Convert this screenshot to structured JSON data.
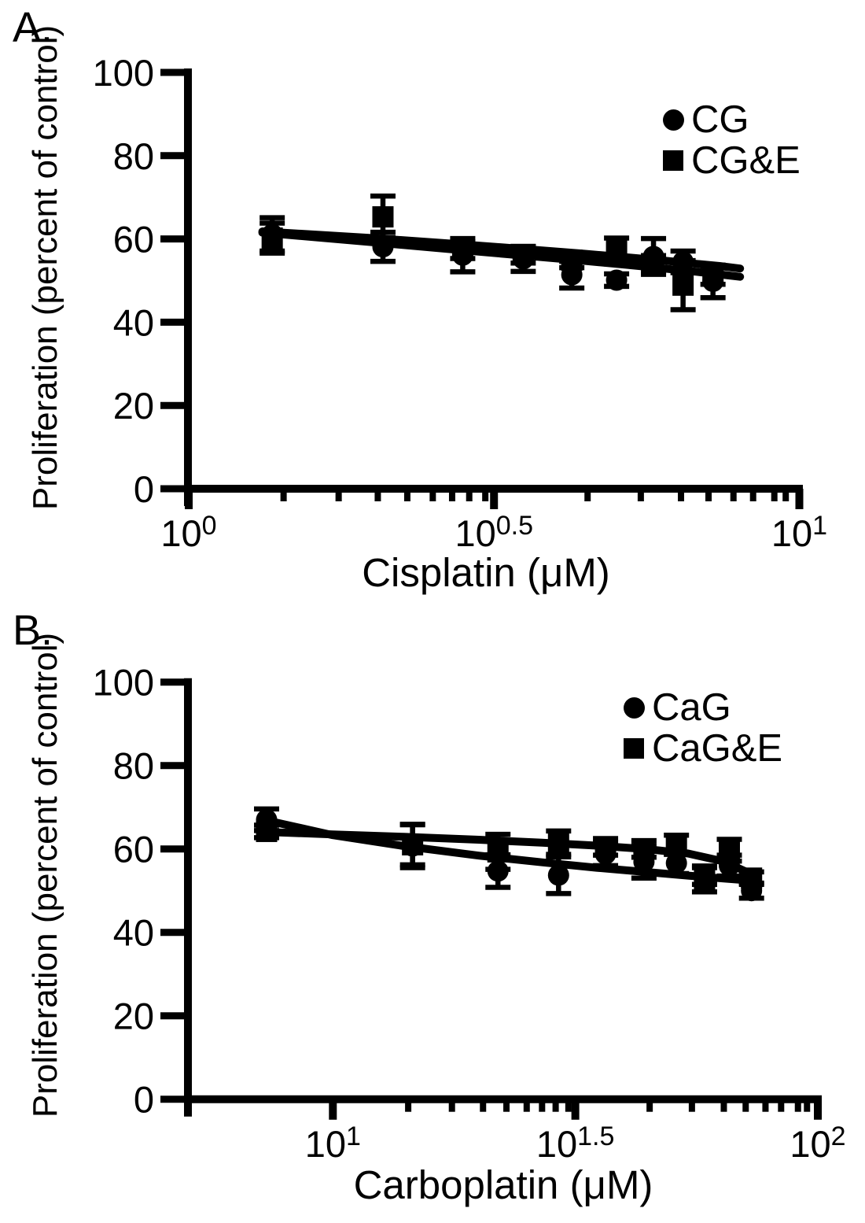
{
  "page": {
    "background": "#ffffff",
    "ink": "#000000"
  },
  "chart_data": [
    {
      "type": "scatter",
      "panel_label": "A.",
      "xlabel": "Cisplatin (μM)",
      "ylabel": "Proliferation (percent of control)",
      "x_scale": "log10",
      "xlim": [
        1,
        10
      ],
      "ylim": [
        0,
        100
      ],
      "grid": false,
      "legend_position": "top-right",
      "y_ticks": [
        0,
        20,
        40,
        60,
        80,
        100
      ],
      "x_major_ticks": [
        {
          "value": 1,
          "base": "10",
          "exp": "0"
        },
        {
          "value": 3.162,
          "base": "10",
          "exp": "0.5"
        },
        {
          "value": 10,
          "base": "10",
          "exp": "1"
        }
      ],
      "x_minor_ticks": [
        1.43,
        1.76,
        2.04,
        2.28,
        2.51,
        2.7,
        2.88,
        3.06,
        4.5,
        5.5,
        6.4,
        7.1,
        7.8,
        8.4,
        9.1,
        9.5
      ],
      "series": [
        {
          "name": "CG",
          "marker": "circle",
          "x": [
            1.37,
            2.08,
            2.81,
            3.53,
            4.24,
            5.02,
            5.77,
            6.45,
            7.22
          ],
          "y": [
            61.1,
            58.1,
            56.1,
            55.2,
            51.4,
            50.1,
            55.8,
            54.5,
            49.8
          ],
          "yerr": [
            4.0,
            3.5,
            4.0,
            3.0,
            3.2,
            1.5,
            4.3,
            2.6,
            3.9
          ],
          "fit": {
            "x": [
              1.32,
              2.0,
              2.8,
              3.6,
              4.4,
              5.2,
              6.0,
              6.8,
              7.4,
              8.0
            ],
            "y": [
              61.5,
              59.2,
              57.3,
              55.9,
              54.8,
              53.8,
              52.9,
              52.1,
              51.5,
              50.9
            ]
          }
        },
        {
          "name": "CG&E",
          "marker": "square",
          "x": [
            1.37,
            2.08,
            2.81,
            3.53,
            4.24,
            5.02,
            5.77,
            6.45,
            7.22
          ],
          "y": [
            60.2,
            65.3,
            57.3,
            56.2,
            54.9,
            57.1,
            54.0,
            48.9,
            51.3
          ],
          "yerr": [
            3.6,
            5.0,
            2.0,
            2.0,
            1.8,
            3.1,
            2.0,
            5.9,
            2.2
          ],
          "fit": {
            "x": [
              1.32,
              2.0,
              2.8,
              3.6,
              4.4,
              5.2,
              6.0,
              6.8,
              7.4,
              8.0
            ],
            "y": [
              61.8,
              60.2,
              58.7,
              57.5,
              56.5,
              55.6,
              54.8,
              54.0,
              53.5,
              52.9
            ]
          }
        }
      ]
    },
    {
      "type": "scatter",
      "panel_label": "B.",
      "xlabel": "Carboplatin (μM)",
      "ylabel": "Proliferation (percent of control)",
      "x_scale": "log10",
      "xlim": [
        5,
        100
      ],
      "ylim": [
        0,
        100
      ],
      "grid": false,
      "legend_position": "top-right",
      "y_ticks": [
        0,
        20,
        40,
        60,
        80,
        100
      ],
      "x_major_ticks": [
        {
          "value": 10,
          "base": "10",
          "exp": "1"
        },
        {
          "value": 31.62,
          "base": "10",
          "exp": "1.5"
        },
        {
          "value": 100,
          "base": "10",
          "exp": "2"
        }
      ],
      "x_minor_ticks": [
        14.3,
        17.6,
        20.4,
        22.8,
        25.1,
        27.0,
        28.8,
        30.6,
        45,
        55,
        64,
        71,
        78,
        84,
        91,
        95
      ],
      "series": [
        {
          "name": "CaG",
          "marker": "circle",
          "x": [
            7.3,
            14.6,
            21.9,
            29.2,
            36.5,
            43.8,
            51.1,
            58.4,
            65.7,
            73.0
          ],
          "y": [
            67.0,
            60.7,
            54.7,
            53.7,
            58.8,
            56.9,
            56.6,
            53.5,
            56.0,
            50.0
          ],
          "yerr": [
            2.6,
            5.2,
            3.9,
            4.4,
            2.8,
            3.9,
            2.5,
            2.0,
            2.5,
            1.8
          ],
          "fit": {
            "x": [
              7.2,
              10,
              14,
              20,
              27,
              35,
              44,
              54,
              64,
              75
            ],
            "y": [
              67.0,
              63.3,
              60.7,
              58.4,
              56.8,
              55.5,
              54.5,
              53.6,
              52.9,
              52.3
            ]
          }
        },
        {
          "name": "CaG&E",
          "marker": "square",
          "x": [
            7.3,
            14.6,
            21.9,
            29.2,
            36.5,
            43.8,
            51.1,
            58.4,
            65.7,
            73.0
          ],
          "y": [
            64.2,
            61.0,
            59.3,
            61.5,
            60.5,
            60.0,
            61.0,
            52.8,
            59.7,
            53.0
          ],
          "yerr": [
            1.5,
            4.8,
            4.2,
            2.8,
            2.0,
            2.0,
            2.3,
            3.1,
            2.6,
            1.5
          ],
          "fit": {
            "x": [
              7.2,
              10,
              14,
              20,
              27,
              35,
              44,
              54,
              64,
              75
            ],
            "y": [
              64.1,
              63.5,
              62.9,
              62.2,
              61.5,
              60.8,
              60.0,
              58.9,
              57.0,
              53.3
            ]
          }
        }
      ]
    }
  ]
}
